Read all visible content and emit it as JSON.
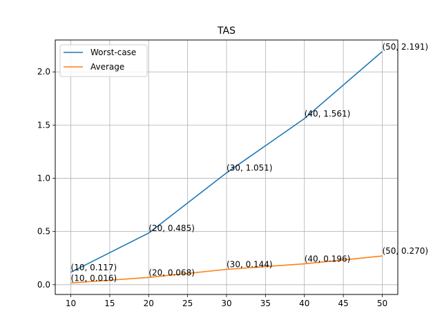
{
  "chart_data": {
    "type": "line",
    "title": "TAS",
    "xlabel": "",
    "ylabel": "",
    "xlim": [
      8,
      52
    ],
    "ylim": [
      -0.0918,
      2.2997
    ],
    "xticks": [
      10,
      15,
      20,
      25,
      30,
      35,
      40,
      45,
      50
    ],
    "yticks": [
      0.0,
      0.5,
      1.0,
      1.5,
      2.0
    ],
    "xtick_labels": [
      "10",
      "15",
      "20",
      "25",
      "30",
      "35",
      "40",
      "45",
      "50"
    ],
    "ytick_labels": [
      "0.0",
      "0.5",
      "1.0",
      "1.5",
      "2.0"
    ],
    "grid": true,
    "legend_position": "upper-left",
    "x": [
      10,
      20,
      30,
      40,
      50
    ],
    "series": [
      {
        "name": "Worst-case",
        "color": "#1f77b4",
        "values": [
          0.117,
          0.485,
          1.051,
          1.561,
          2.191
        ],
        "labels": [
          "(10, 0.117)",
          "(20, 0.485)",
          "(30, 1.051)",
          "(40, 1.561)",
          "(50, 2.191)"
        ]
      },
      {
        "name": "Average",
        "color": "#ff7f0e",
        "values": [
          0.016,
          0.068,
          0.144,
          0.196,
          0.27
        ],
        "labels": [
          "(10, 0.016)",
          "(20, 0.068)",
          "(30, 0.144)",
          "(40, 0.196)",
          "(50, 0.270)"
        ]
      }
    ]
  }
}
